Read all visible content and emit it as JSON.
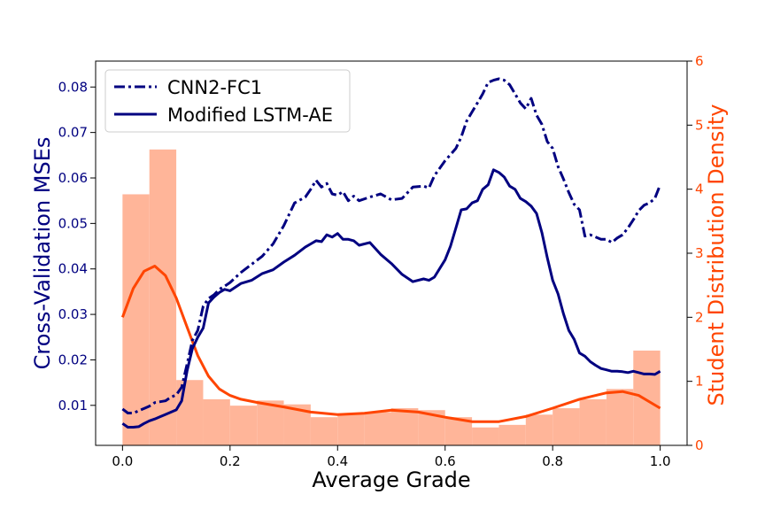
{
  "chart_data": {
    "type": "line",
    "xlabel": "Average Grade",
    "ylabel_left": "Cross-Validation MSEs",
    "ylabel_right": "Student Distribution Density",
    "xlim": [
      -0.05,
      1.05
    ],
    "ylim_left": [
      0.0012,
      0.0857
    ],
    "ylim_right": [
      0,
      6
    ],
    "xticks": [
      "0.0",
      "0.2",
      "0.4",
      "0.6",
      "0.8",
      "1.0"
    ],
    "yticks_left": [
      "0.01",
      "0.02",
      "0.03",
      "0.04",
      "0.05",
      "0.06",
      "0.07",
      "0.08"
    ],
    "yticks_right": [
      "0",
      "1",
      "2",
      "3",
      "4",
      "5",
      "6"
    ],
    "legend_position": "top-left",
    "colors": {
      "left_axis": "#000080",
      "right_axis": "#FF4500",
      "bars": "#FFB599",
      "density_line": "#FF4500"
    },
    "series": [
      {
        "name": "CNN2-FC1",
        "style": "dashdot",
        "color": "#000080",
        "x": [
          0.0,
          0.01,
          0.02,
          0.03,
          0.04,
          0.05,
          0.06,
          0.07,
          0.08,
          0.09,
          0.1,
          0.11,
          0.12,
          0.13,
          0.14,
          0.15,
          0.16,
          0.17,
          0.18,
          0.19,
          0.2,
          0.22,
          0.24,
          0.26,
          0.28,
          0.3,
          0.32,
          0.34,
          0.35,
          0.36,
          0.37,
          0.38,
          0.39,
          0.4,
          0.41,
          0.42,
          0.43,
          0.44,
          0.46,
          0.48,
          0.5,
          0.52,
          0.54,
          0.56,
          0.57,
          0.58,
          0.6,
          0.62,
          0.63,
          0.64,
          0.65,
          0.66,
          0.67,
          0.68,
          0.69,
          0.7,
          0.71,
          0.72,
          0.73,
          0.74,
          0.75,
          0.76,
          0.77,
          0.78,
          0.79,
          0.8,
          0.81,
          0.82,
          0.83,
          0.84,
          0.85,
          0.86,
          0.87,
          0.88,
          0.89,
          0.9,
          0.91,
          0.92,
          0.93,
          0.94,
          0.95,
          0.96,
          0.97,
          0.98,
          0.99,
          1.0
        ],
        "y": [
          0.0092,
          0.0083,
          0.0083,
          0.0088,
          0.0093,
          0.0098,
          0.0106,
          0.0108,
          0.011,
          0.0118,
          0.0123,
          0.014,
          0.019,
          0.0243,
          0.0265,
          0.0318,
          0.0335,
          0.0343,
          0.0355,
          0.0362,
          0.037,
          0.0392,
          0.041,
          0.0428,
          0.0455,
          0.0495,
          0.0545,
          0.0558,
          0.0575,
          0.0595,
          0.058,
          0.0588,
          0.0565,
          0.0562,
          0.057,
          0.055,
          0.056,
          0.055,
          0.0558,
          0.0565,
          0.0552,
          0.0555,
          0.058,
          0.0582,
          0.0578,
          0.0605,
          0.0638,
          0.0665,
          0.069,
          0.0725,
          0.0745,
          0.0765,
          0.0785,
          0.081,
          0.0815,
          0.0818,
          0.0815,
          0.0805,
          0.0785,
          0.0765,
          0.0752,
          0.0775,
          0.0738,
          0.0718,
          0.068,
          0.0665,
          0.0625,
          0.0598,
          0.0568,
          0.0542,
          0.053,
          0.0472,
          0.0475,
          0.047,
          0.0465,
          0.0465,
          0.0458,
          0.0468,
          0.0475,
          0.049,
          0.0508,
          0.0528,
          0.054,
          0.0545,
          0.0555,
          0.0585
        ]
      },
      {
        "name": "Modified LSTM-AE",
        "style": "solid",
        "color": "#000080",
        "x": [
          0.0,
          0.01,
          0.02,
          0.03,
          0.04,
          0.05,
          0.06,
          0.07,
          0.08,
          0.09,
          0.1,
          0.11,
          0.12,
          0.13,
          0.14,
          0.15,
          0.16,
          0.17,
          0.18,
          0.19,
          0.2,
          0.22,
          0.24,
          0.26,
          0.28,
          0.3,
          0.32,
          0.34,
          0.35,
          0.36,
          0.37,
          0.38,
          0.39,
          0.4,
          0.41,
          0.42,
          0.43,
          0.44,
          0.46,
          0.48,
          0.5,
          0.52,
          0.54,
          0.56,
          0.57,
          0.58,
          0.6,
          0.61,
          0.62,
          0.63,
          0.64,
          0.65,
          0.66,
          0.67,
          0.68,
          0.69,
          0.7,
          0.71,
          0.72,
          0.73,
          0.74,
          0.75,
          0.76,
          0.77,
          0.78,
          0.79,
          0.8,
          0.81,
          0.82,
          0.83,
          0.84,
          0.85,
          0.86,
          0.87,
          0.88,
          0.89,
          0.9,
          0.91,
          0.92,
          0.93,
          0.94,
          0.95,
          0.96,
          0.97,
          0.98,
          0.99,
          1.0
        ],
        "y": [
          0.006,
          0.0052,
          0.0052,
          0.0053,
          0.006,
          0.0066,
          0.007,
          0.0075,
          0.008,
          0.0085,
          0.009,
          0.011,
          0.0175,
          0.0225,
          0.025,
          0.027,
          0.0325,
          0.0338,
          0.0348,
          0.0355,
          0.0352,
          0.0368,
          0.0375,
          0.039,
          0.0398,
          0.0415,
          0.043,
          0.0448,
          0.0455,
          0.0462,
          0.046,
          0.0475,
          0.047,
          0.0478,
          0.0465,
          0.0465,
          0.0462,
          0.0452,
          0.0458,
          0.0432,
          0.0412,
          0.0388,
          0.0372,
          0.0378,
          0.0375,
          0.0382,
          0.042,
          0.045,
          0.049,
          0.053,
          0.0532,
          0.0545,
          0.055,
          0.0575,
          0.0585,
          0.0618,
          0.0612,
          0.0602,
          0.0582,
          0.0575,
          0.0555,
          0.0548,
          0.0538,
          0.0522,
          0.048,
          0.0425,
          0.0375,
          0.0345,
          0.0302,
          0.0265,
          0.0245,
          0.0215,
          0.0208,
          0.0196,
          0.0188,
          0.0181,
          0.0178,
          0.0175,
          0.0175,
          0.0174,
          0.0172,
          0.0175,
          0.0172,
          0.0169,
          0.0169,
          0.0168,
          0.0175
        ]
      }
    ],
    "density_series": {
      "x": [
        0.0,
        0.02,
        0.04,
        0.06,
        0.08,
        0.1,
        0.12,
        0.14,
        0.16,
        0.18,
        0.2,
        0.22,
        0.25,
        0.3,
        0.35,
        0.4,
        0.45,
        0.5,
        0.55,
        0.6,
        0.65,
        0.7,
        0.75,
        0.8,
        0.85,
        0.9,
        0.93,
        0.96,
        1.0
      ],
      "y": [
        2.0,
        2.45,
        2.72,
        2.8,
        2.65,
        2.3,
        1.85,
        1.4,
        1.08,
        0.88,
        0.78,
        0.72,
        0.67,
        0.6,
        0.52,
        0.48,
        0.5,
        0.55,
        0.52,
        0.44,
        0.37,
        0.37,
        0.45,
        0.58,
        0.72,
        0.82,
        0.84,
        0.78,
        0.58
      ]
    },
    "histogram": {
      "edges": [
        0.0,
        0.05,
        0.1,
        0.15,
        0.2,
        0.25,
        0.3,
        0.35,
        0.4,
        0.45,
        0.5,
        0.55,
        0.6,
        0.65,
        0.7,
        0.75,
        0.8,
        0.85,
        0.9,
        0.95,
        1.0
      ],
      "density": [
        3.92,
        4.62,
        1.02,
        0.72,
        0.62,
        0.7,
        0.64,
        0.44,
        0.5,
        0.52,
        0.58,
        0.55,
        0.44,
        0.28,
        0.32,
        0.48,
        0.58,
        0.72,
        0.88,
        1.48
      ]
    }
  }
}
